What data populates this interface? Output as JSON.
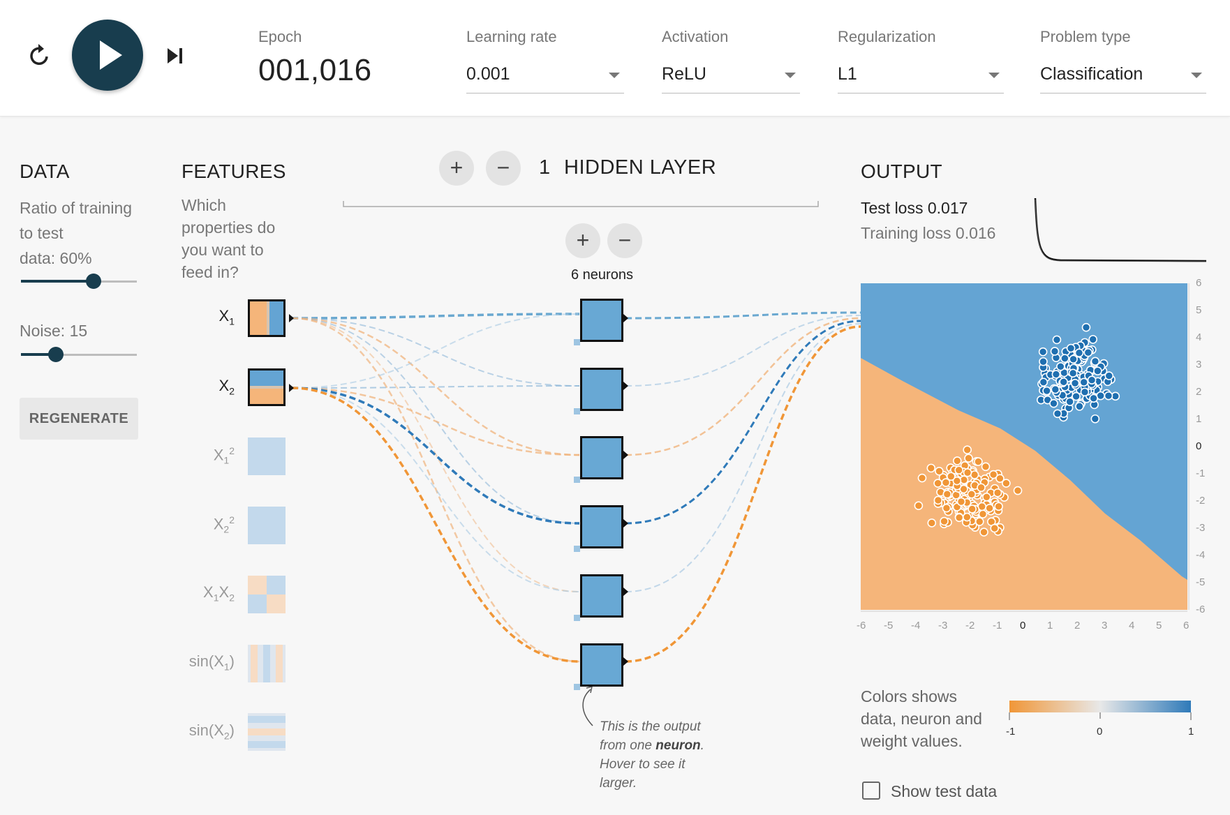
{
  "header": {
    "epoch_label": "Epoch",
    "epoch_value": "001,016",
    "learning_rate": {
      "label": "Learning rate",
      "value": "0.001"
    },
    "activation": {
      "label": "Activation",
      "value": "ReLU"
    },
    "regularization": {
      "label": "Regularization",
      "value": "L1"
    },
    "problem_type": {
      "label": "Problem type",
      "value": "Classification"
    }
  },
  "data_panel": {
    "title": "DATA",
    "ratio_line1": "Ratio of training",
    "ratio_line2": "to test",
    "ratio_line3": "data:  60%",
    "ratio_percent": 60,
    "noise_label": "Noise:  15",
    "noise_value": 15,
    "regenerate_label": "REGENERATE"
  },
  "features": {
    "title": "FEATURES",
    "question": "Which properties do you want to feed in?",
    "items": [
      {
        "name": "X1",
        "active": true
      },
      {
        "name": "X2",
        "active": true
      },
      {
        "name": "X1^2",
        "active": false
      },
      {
        "name": "X2^2",
        "active": false
      },
      {
        "name": "X1X2",
        "active": false
      },
      {
        "name": "sin(X1)",
        "active": false
      },
      {
        "name": "sin(X2)",
        "active": false
      }
    ]
  },
  "hidden": {
    "count": "1",
    "title": "HIDDEN LAYER",
    "neurons_label": "6 neurons",
    "callout_l1": "This is the output",
    "callout_l2_pre": "from one ",
    "callout_l2_bold": "neuron",
    "callout_l2_post": ".",
    "callout_l3": "Hover to see it",
    "callout_l4": "larger."
  },
  "output": {
    "title": "OUTPUT",
    "test_loss": "Test loss 0.017",
    "training_loss": "Training loss 0.016",
    "axis_ticks": [
      "-6",
      "-5",
      "-4",
      "-3",
      "-2",
      "-1",
      "0",
      "1",
      "2",
      "3",
      "4",
      "5",
      "6"
    ],
    "legend_line1": "Colors shows",
    "legend_line2": "data, neuron and",
    "legend_line3": "weight values.",
    "colorbar_ticks": [
      "-1",
      "0",
      "1"
    ],
    "show_test_label": "Show test data"
  },
  "colors": {
    "orange": "#f5b57a",
    "blue": "#64a4d3",
    "dark_orange": "#f09637",
    "dark_blue": "#2f7ab9",
    "play": "#183d4e"
  }
}
